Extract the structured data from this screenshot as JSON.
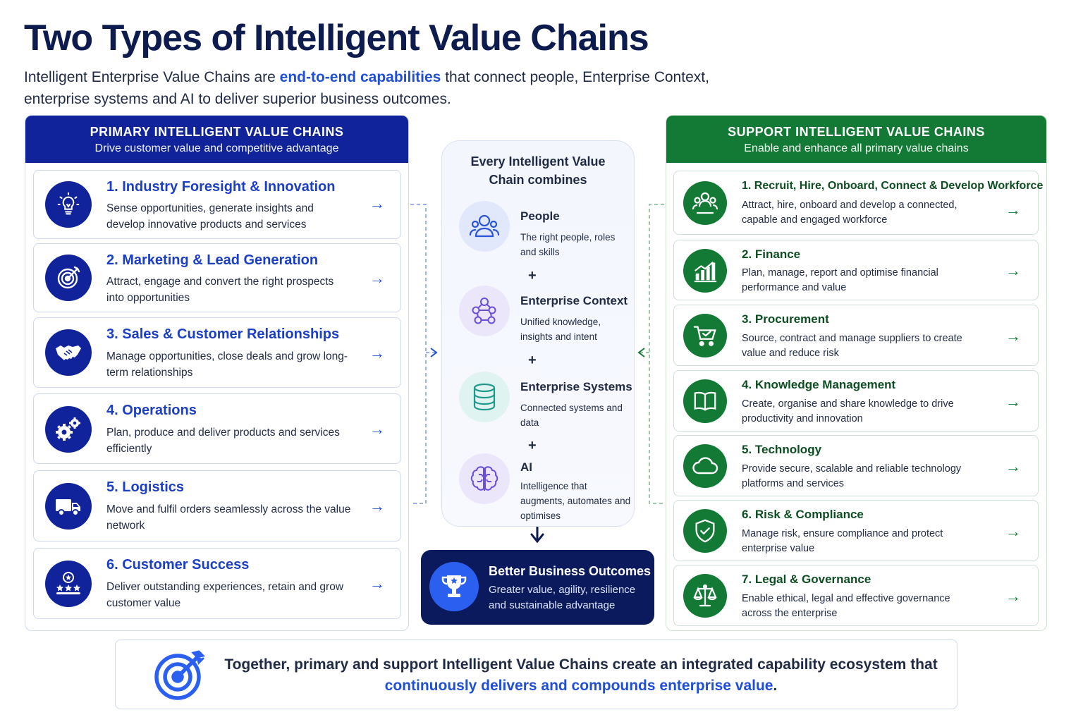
{
  "header": {
    "title": "Two Types of Intelligent Value Chains",
    "subtitle_pre": "Intelligent Enterprise Value Chains are ",
    "subtitle_highlight": "end-to-end capabilities",
    "subtitle_post": " that connect people, Enterprise Context, enterprise systems and AI to deliver superior business outcomes."
  },
  "primary": {
    "heading": "PRIMARY INTELLIGENT VALUE CHAINS",
    "subheading": "Drive customer value and competitive advantage",
    "items": [
      {
        "title": "1. Industry Foresight & Innovation",
        "desc": "Sense opportunities, generate insights and develop innovative products and services",
        "icon": "lightbulb-icon"
      },
      {
        "title": "2. Marketing & Lead Generation",
        "desc": "Attract, engage and convert the right prospects into opportunities",
        "icon": "target-icon"
      },
      {
        "title": "3. Sales & Customer Relationships",
        "desc": "Manage opportunities, close deals and grow long-term relationships",
        "icon": "handshake-icon"
      },
      {
        "title": "4. Operations",
        "desc": "Plan, produce and deliver products and services efficiently",
        "icon": "gears-icon"
      },
      {
        "title": "5. Logistics",
        "desc": "Move and fulfil orders seamlessly across the value network",
        "icon": "truck-icon"
      },
      {
        "title": "6. Customer Success",
        "desc": "Deliver outstanding experiences, retain and grow customer value",
        "icon": "stars-icon"
      }
    ]
  },
  "support": {
    "heading": "SUPPORT INTELLIGENT VALUE CHAINS",
    "subheading": "Enable and enhance all primary value chains",
    "items": [
      {
        "title": "1. Recruit, Hire, Onboard, Connect & Develop Workforce",
        "desc": "Attract, hire, onboard and develop a connected, capable and engaged workforce",
        "icon": "people-group-icon"
      },
      {
        "title": "2. Finance",
        "desc": "Plan, manage, report and optimise financial performance and value",
        "icon": "bar-chart-icon"
      },
      {
        "title": "3. Procurement",
        "desc": "Source, contract and manage suppliers to create value and reduce risk",
        "icon": "cart-icon"
      },
      {
        "title": "4. Knowledge Management",
        "desc": "Create, organise and share knowledge to drive productivity and innovation",
        "icon": "book-icon"
      },
      {
        "title": "5. Technology",
        "desc": "Provide secure, scalable and reliable technology platforms and services",
        "icon": "cloud-icon"
      },
      {
        "title": "6. Risk & Compliance",
        "desc": "Manage risk, ensure compliance and protect enterprise value",
        "icon": "shield-icon"
      },
      {
        "title": "7. Legal & Governance",
        "desc": "Enable ethical, legal and effective governance across the enterprise",
        "icon": "scales-icon"
      }
    ]
  },
  "center": {
    "title": "Every Intelligent Value Chain combines",
    "components": [
      {
        "title": "People",
        "desc": "The right people, roles and skills",
        "icon": "people-icon"
      },
      {
        "title": "Enterprise Context",
        "desc": "Unified knowledge, insights and intent",
        "icon": "network-icon"
      },
      {
        "title": "Enterprise Systems",
        "desc": "Connected systems and data",
        "icon": "database-icon"
      },
      {
        "title": "AI",
        "desc": "Intelligence that augments, automates and optimises",
        "icon": "brain-icon"
      }
    ],
    "plus": "+",
    "outcome_title": "Better Business Outcomes",
    "outcome_desc": "Greater value, agility, resilience and sustainable advantage"
  },
  "footer": {
    "text_pre": "Together, primary and support Intelligent Value Chains create an integrated capability ecosystem that ",
    "text_highlight": "continuously delivers and compounds enterprise value",
    "text_post": "."
  },
  "colors": {
    "primary": "#10239a",
    "support": "#137a35",
    "accent": "#1f4fd6",
    "outcome": "#0b1a5c"
  }
}
